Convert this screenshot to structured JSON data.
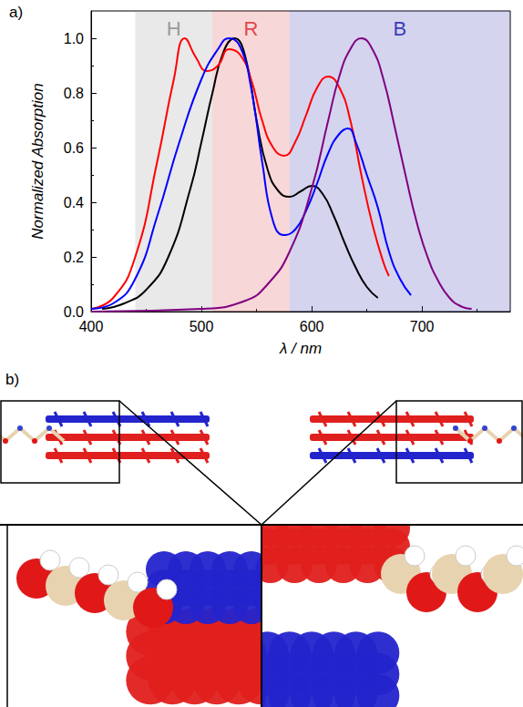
{
  "chart_data": {
    "type": "line",
    "annotations": [
      "a)"
    ],
    "x_label": "λ / nm",
    "y_label": "Normalized Absorption",
    "xlim": [
      400,
      780
    ],
    "xticks": [
      400,
      500,
      600,
      700
    ],
    "ylim": [
      0,
      1.1
    ],
    "yticks": [
      {
        "value": 0,
        "label": "0.0"
      },
      {
        "value": 0.2,
        "label": "0.2"
      },
      {
        "value": 0.4,
        "label": "0.4"
      },
      {
        "value": 0.6,
        "label": "0.6"
      },
      {
        "value": 0.8,
        "label": "0.8"
      },
      {
        "value": 1.0,
        "label": "1.0"
      }
    ],
    "grid": false,
    "regions": [
      {
        "label": "H",
        "from": 440,
        "to": 510,
        "color": "#9a9a9a"
      },
      {
        "label": "R",
        "from": 510,
        "to": 580,
        "color": "#e0474c"
      },
      {
        "label": "B",
        "from": 580,
        "to": 780,
        "color": "#3b3bb8"
      }
    ],
    "series": [
      {
        "color": "#000000",
        "x": [
          410,
          430,
          450,
          470,
          490,
          500,
          510,
          520,
          530,
          540,
          550,
          560,
          570,
          580,
          590,
          600,
          610,
          620,
          630,
          640,
          650,
          660
        ],
        "values": [
          0.01,
          0.03,
          0.08,
          0.2,
          0.45,
          0.62,
          0.8,
          0.95,
          1.0,
          0.93,
          0.7,
          0.52,
          0.44,
          0.42,
          0.44,
          0.46,
          0.43,
          0.35,
          0.25,
          0.16,
          0.09,
          0.05
        ]
      },
      {
        "color": "#ff0000",
        "x": [
          400,
          420,
          440,
          460,
          475,
          485,
          495,
          505,
          515,
          525,
          535,
          545,
          555,
          565,
          575,
          585,
          595,
          605,
          615,
          625,
          635,
          645,
          655,
          665,
          670
        ],
        "values": [
          0.01,
          0.05,
          0.2,
          0.55,
          0.85,
          1.0,
          0.93,
          0.88,
          0.9,
          0.96,
          0.94,
          0.85,
          0.7,
          0.6,
          0.57,
          0.62,
          0.72,
          0.82,
          0.86,
          0.82,
          0.7,
          0.5,
          0.32,
          0.18,
          0.13
        ]
      },
      {
        "color": "#0000ff",
        "x": [
          400,
          420,
          440,
          460,
          480,
          500,
          515,
          525,
          535,
          545,
          555,
          565,
          575,
          585,
          595,
          605,
          615,
          625,
          633,
          640,
          650,
          660,
          670,
          680,
          690
        ],
        "values": [
          0.01,
          0.03,
          0.12,
          0.35,
          0.62,
          0.85,
          0.96,
          1.0,
          0.97,
          0.82,
          0.55,
          0.33,
          0.28,
          0.3,
          0.37,
          0.47,
          0.58,
          0.65,
          0.67,
          0.62,
          0.5,
          0.38,
          0.22,
          0.12,
          0.06
        ]
      },
      {
        "color": "#800080",
        "x": [
          400,
          500,
          540,
          560,
          580,
          600,
          615,
          625,
          635,
          645,
          655,
          665,
          675,
          685,
          695,
          705,
          715,
          725,
          735,
          745
        ],
        "values": [
          0,
          0.01,
          0.04,
          0.1,
          0.22,
          0.45,
          0.7,
          0.86,
          0.96,
          1.0,
          0.96,
          0.85,
          0.68,
          0.5,
          0.33,
          0.2,
          0.11,
          0.05,
          0.02,
          0.01
        ]
      }
    ]
  },
  "panel_b": {
    "label": "b)"
  }
}
